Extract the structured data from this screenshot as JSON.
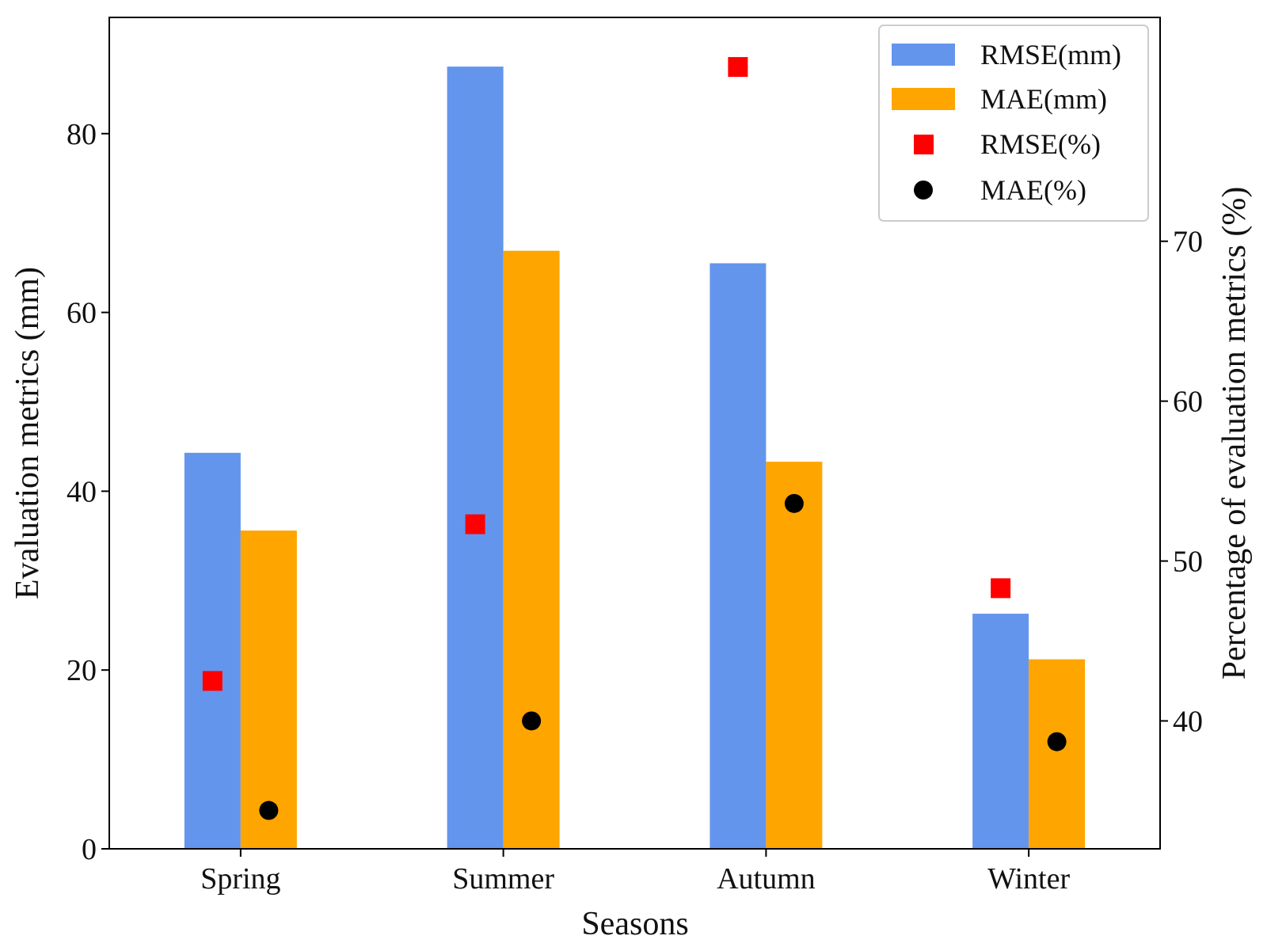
{
  "chart_data": {
    "type": "bar",
    "categories": [
      "Spring",
      "Summer",
      "Autumn",
      "Winter"
    ],
    "series": [
      {
        "name": "RMSE(mm)",
        "axis": "left",
        "kind": "bar",
        "color": "#6495ED",
        "values": [
          44.3,
          87.5,
          65.5,
          26.3
        ]
      },
      {
        "name": "MAE(mm)",
        "axis": "left",
        "kind": "bar",
        "color": "#FFA500",
        "values": [
          35.6,
          66.9,
          43.3,
          21.2
        ]
      },
      {
        "name": "RMSE(%)",
        "axis": "right",
        "kind": "square-marker",
        "color": "#FF0000",
        "values": [
          42.5,
          52.3,
          80.9,
          48.3
        ]
      },
      {
        "name": "MAE(%)",
        "axis": "right",
        "kind": "circle-marker",
        "color": "#000000",
        "values": [
          34.4,
          40.0,
          53.6,
          38.7
        ]
      }
    ],
    "xlabel": "Seasons",
    "ylabel": "Evaluation metrics (mm)",
    "y2label": "Percentage of evaluation metrics (%)",
    "ylim": [
      0,
      93
    ],
    "y2lim": [
      32.0,
      84.0
    ],
    "yticks": [
      0,
      20,
      40,
      60,
      80
    ],
    "y2ticks": [
      40,
      50,
      60,
      70
    ],
    "legend_position": "top-right",
    "grid": false
  }
}
